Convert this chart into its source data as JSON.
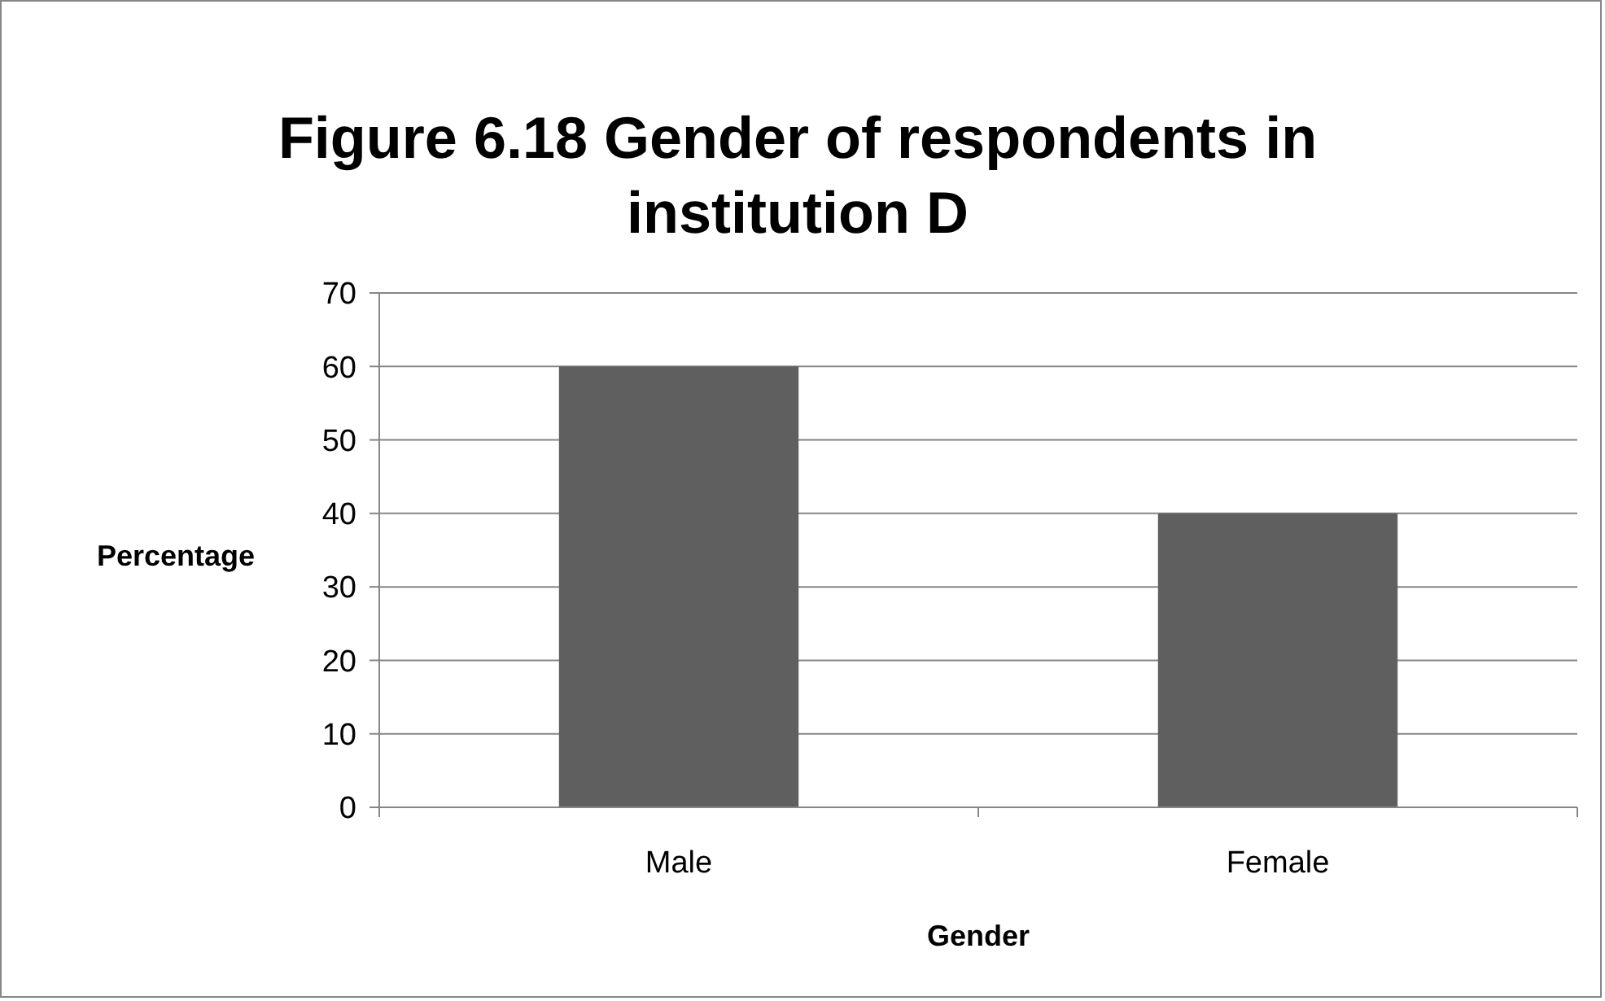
{
  "chart_data": {
    "type": "bar",
    "title": "Figure 6.18 Gender of respondents in institution D",
    "xlabel": "Gender",
    "ylabel": "Percentage",
    "categories": [
      "Male",
      "Female"
    ],
    "values": [
      60,
      40
    ],
    "color": "#5f5f5f",
    "ylim": [
      0,
      70
    ],
    "yticks": [
      0,
      10,
      20,
      30,
      40,
      50,
      60,
      70
    ],
    "grid": "y"
  }
}
